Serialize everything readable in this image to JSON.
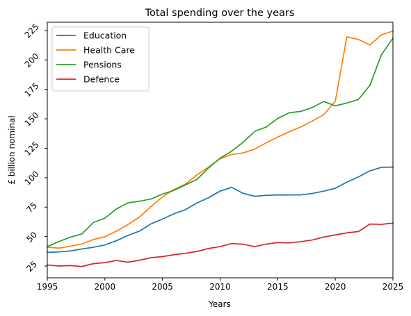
{
  "chart_data": {
    "type": "line",
    "title": "Total spending over the years",
    "xlabel": "Years",
    "ylabel": "£ billion nominal",
    "xlim": [
      1995,
      2025
    ],
    "ylim": [
      15,
      232
    ],
    "xticks": [
      1995,
      2000,
      2005,
      2010,
      2015,
      2020,
      2025
    ],
    "yticks": [
      25,
      50,
      75,
      100,
      125,
      150,
      175,
      200,
      225
    ],
    "ytick_rotation": 45,
    "grid": false,
    "legend_position": "top-left",
    "x": [
      1995,
      1996,
      1997,
      1998,
      1999,
      2000,
      2001,
      2002,
      2003,
      2004,
      2005,
      2006,
      2007,
      2008,
      2009,
      2010,
      2011,
      2012,
      2013,
      2014,
      2015,
      2016,
      2017,
      2018,
      2019,
      2020,
      2021,
      2022,
      2023,
      2024,
      2025
    ],
    "series": [
      {
        "name": "Education",
        "color": "#1f77b4",
        "values": [
          36.6,
          37.0,
          37.8,
          39.5,
          40.9,
          42.9,
          46.5,
          51.0,
          54.6,
          60.8,
          64.9,
          69.4,
          72.9,
          78.6,
          83.0,
          88.6,
          91.8,
          86.7,
          84.2,
          85.0,
          85.4,
          85.3,
          85.4,
          86.6,
          88.6,
          91.0,
          96.2,
          100.6,
          105.8,
          108.8,
          109.0
        ]
      },
      {
        "name": "Health Care",
        "color": "#ff7f0e",
        "values": [
          41.0,
          40.2,
          41.8,
          43.7,
          47.5,
          49.9,
          54.6,
          60.2,
          66.6,
          75.4,
          83.7,
          90.0,
          94.6,
          102.5,
          109.1,
          116.1,
          119.7,
          121.0,
          124.3,
          129.6,
          134.5,
          139.0,
          143.1,
          148.1,
          153.5,
          165.0,
          219.6,
          217.4,
          212.7,
          221.2,
          224.5
        ]
      },
      {
        "name": "Pensions",
        "color": "#2ca02c",
        "values": [
          41.5,
          45.7,
          49.5,
          52.2,
          62.0,
          65.6,
          73.5,
          78.6,
          80.0,
          81.9,
          86.1,
          89.3,
          93.9,
          98.6,
          108.3,
          116.6,
          122.5,
          130.1,
          139.3,
          143.0,
          150.3,
          155.1,
          156.3,
          159.6,
          164.7,
          161.0,
          163.4,
          166.4,
          178.4,
          204.4,
          218.4
        ]
      },
      {
        "name": "Defence",
        "color": "#d62728",
        "values": [
          25.9,
          25.0,
          25.4,
          24.6,
          27.0,
          27.9,
          29.7,
          28.3,
          29.9,
          32.1,
          33.0,
          34.6,
          35.8,
          37.4,
          39.9,
          41.5,
          44.1,
          43.5,
          41.5,
          43.6,
          44.9,
          44.6,
          45.7,
          47.1,
          49.6,
          51.4,
          53.1,
          54.3,
          60.6,
          60.4,
          61.4
        ]
      }
    ]
  }
}
